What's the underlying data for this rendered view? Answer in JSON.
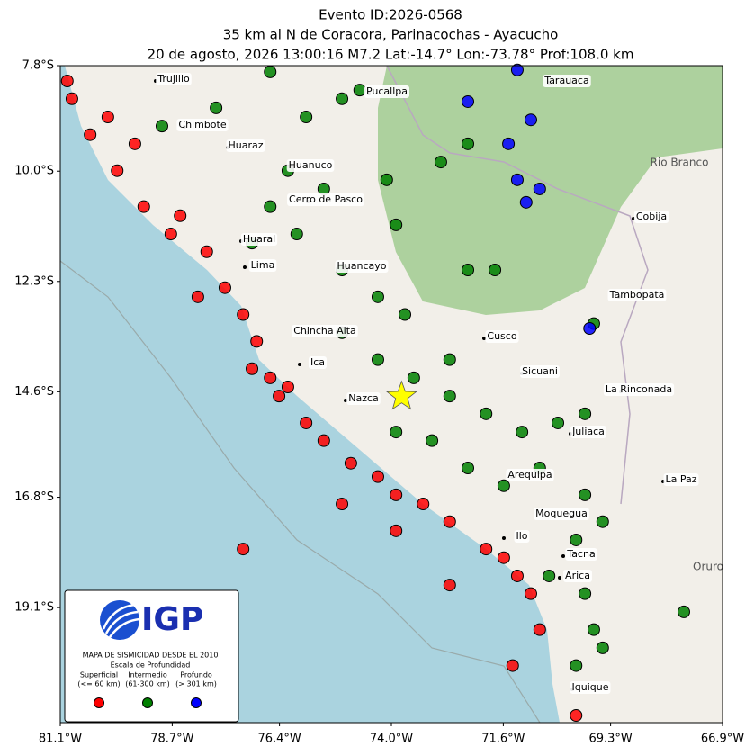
{
  "chart_data": {
    "type": "scatter",
    "title": [
      "Evento ID:2026-0568",
      "35 km al N de Coracora, Parinacochas - Ayacucho",
      "20 de agosto, 2026 13:00:16 M7.2 Lat:-14.7° Lon:-73.78° Prof:108.0 km"
    ],
    "xlim": [
      -81.1,
      -66.9
    ],
    "ylim": [
      -21.5,
      -7.8
    ],
    "xticks": [
      {
        "value": -81.1,
        "label": "81.1°W"
      },
      {
        "value": -78.7,
        "label": "78.7°W"
      },
      {
        "value": -76.4,
        "label": "76.4°W"
      },
      {
        "value": -74.0,
        "label": "74.0°W"
      },
      {
        "value": -71.6,
        "label": "71.6°W"
      },
      {
        "value": -69.3,
        "label": "69.3°W"
      },
      {
        "value": -66.9,
        "label": "66.9°W"
      }
    ],
    "yticks": [
      {
        "value": -7.8,
        "label": "7.8°S"
      },
      {
        "value": -10.0,
        "label": "10.0°S"
      },
      {
        "value": -12.3,
        "label": "12.3°S"
      },
      {
        "value": -14.6,
        "label": "14.6°S"
      },
      {
        "value": -16.8,
        "label": "16.8°S"
      },
      {
        "value": -19.1,
        "label": "19.1°S"
      }
    ],
    "series": [
      {
        "name": "Superficial",
        "range": "(<= 60 km)",
        "color": "#ff0000",
        "x": [
          -80.85,
          -80.46,
          -79.88,
          -79.31,
          -78.73,
          -77.96,
          -77.57,
          -77.18,
          -76.89,
          -76.6,
          -76.22,
          -75.83,
          -75.45,
          -74.87,
          -74.29,
          -73.9,
          -73.32,
          -72.75,
          -71.97,
          -71.3,
          -71.01,
          -71.59,
          -76.99,
          -76.41,
          -78.53,
          -79.5,
          -80.08,
          -80.95,
          -75.06,
          -73.9,
          -77.18,
          -71.4,
          -70.04,
          -70.82,
          -72.75,
          -78.15
        ],
        "y": [
          -8.49,
          -9.24,
          -9.99,
          -10.74,
          -11.31,
          -11.68,
          -12.43,
          -12.99,
          -13.55,
          -14.31,
          -14.5,
          -15.25,
          -15.62,
          -16.09,
          -16.37,
          -16.75,
          -16.94,
          -17.31,
          -17.88,
          -18.44,
          -18.81,
          -18.06,
          -14.12,
          -14.69,
          -10.93,
          -9.43,
          -8.87,
          -8.12,
          -16.94,
          -17.5,
          -17.88,
          -20.31,
          -21.35,
          -19.56,
          -18.63,
          -12.62
        ]
      },
      {
        "name": "Intermedio",
        "range": "(61-300 km)",
        "color": "#008000",
        "x": [
          -78.92,
          -77.76,
          -76.6,
          -75.83,
          -75.06,
          -74.68,
          -76.22,
          -75.45,
          -76.6,
          -76.99,
          -76.03,
          -75.06,
          -74.29,
          -73.9,
          -74.1,
          -75.06,
          -74.29,
          -73.52,
          -72.75,
          -71.97,
          -71.2,
          -70.43,
          -69.85,
          -70.82,
          -71.59,
          -72.36,
          -73.13,
          -73.9,
          -69.85,
          -69.47,
          -70.04,
          -70.62,
          -69.85,
          -69.66,
          -69.47,
          -70.04,
          -72.36,
          -71.78,
          -72.75,
          -69.66,
          -67.73,
          -72.36,
          -72.94,
          -73.71
        ],
        "y": [
          -9.06,
          -8.68,
          -7.93,
          -8.87,
          -8.49,
          -8.31,
          -9.99,
          -10.37,
          -10.74,
          -11.5,
          -11.31,
          -12.06,
          -12.62,
          -11.12,
          -10.18,
          -13.37,
          -13.93,
          -14.31,
          -14.69,
          -15.06,
          -15.44,
          -15.25,
          -15.06,
          -16.19,
          -16.56,
          -16.19,
          -15.62,
          -15.44,
          -16.75,
          -17.31,
          -17.69,
          -18.44,
          -18.81,
          -19.56,
          -19.94,
          -20.31,
          -12.06,
          -12.06,
          -13.93,
          -13.18,
          -19.19,
          -9.43,
          -9.81,
          -12.99
        ]
      },
      {
        "name": "Profundo",
        "range": "(> 301 km)",
        "color": "#0000ff",
        "x": [
          -71.3,
          -72.36,
          -71.01,
          -71.49,
          -71.3,
          -71.11,
          -70.82,
          -69.75
        ],
        "y": [
          -7.89,
          -8.55,
          -8.93,
          -9.43,
          -10.18,
          -10.65,
          -10.37,
          -13.28
        ]
      }
    ],
    "epicenter": {
      "x": -73.78,
      "y": -14.7,
      "color": "#ffff00"
    },
    "cities": [
      "Trujillo",
      "Chimbote",
      "Huaraz",
      "Pucallpa",
      "Huanuco",
      "Cerro de Pasco",
      "Huaral",
      "Lima",
      "Huancayo",
      "Chincha Alta",
      "Ica",
      "Nazca",
      "Cusco",
      "Sicuani",
      "La Rinconada",
      "Juliaca",
      "Arequipa",
      "Moquegua",
      "Ilo",
      "Tacna",
      "Arica",
      "Iquique",
      "Tarauaca",
      "Cobija",
      "Tambopata",
      "La Paz"
    ],
    "basemap_labels": [
      "Rio Branco",
      "Oruro"
    ],
    "legend": {
      "logo": "IGP",
      "title": "MAPA DE SISMICIDAD DESDE EL 2010",
      "subtitle": "Escala de Profundidad"
    }
  }
}
